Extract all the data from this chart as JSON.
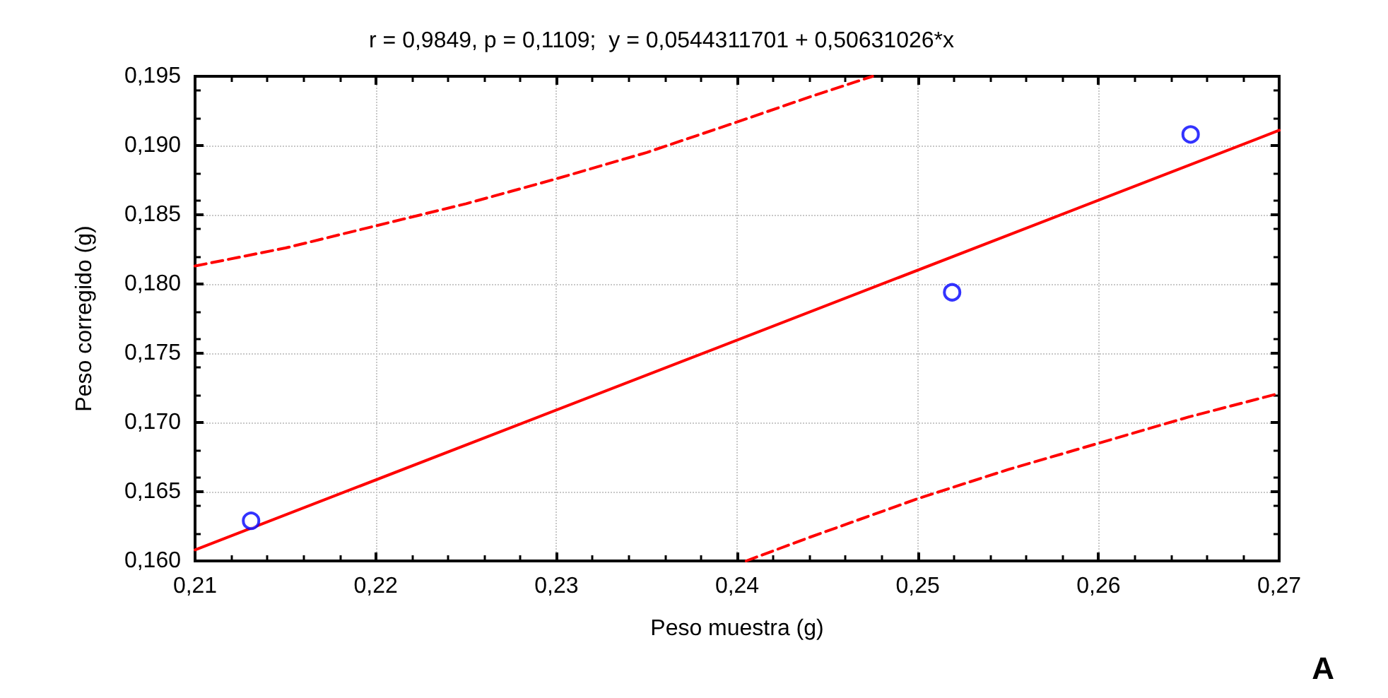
{
  "chart_data": {
    "type": "scatter",
    "title": "r = 0,9849, p = 0,1109;  y = 0,0544311701 + 0,50631026*x",
    "xlabel": "Peso muestra (g)",
    "ylabel": "Peso corregido (g)",
    "xlim": [
      0.21,
      0.27
    ],
    "ylim": [
      0.16,
      0.195
    ],
    "xticks": [
      {
        "value": 0.21,
        "label": "0,21"
      },
      {
        "value": 0.22,
        "label": "0,22"
      },
      {
        "value": 0.23,
        "label": "0,23"
      },
      {
        "value": 0.24,
        "label": "0,24"
      },
      {
        "value": 0.25,
        "label": "0,25"
      },
      {
        "value": 0.26,
        "label": "0,26"
      },
      {
        "value": 0.27,
        "label": "0,27"
      }
    ],
    "yticks": [
      {
        "value": 0.16,
        "label": "0,160"
      },
      {
        "value": 0.165,
        "label": "0,165"
      },
      {
        "value": 0.17,
        "label": "0,170"
      },
      {
        "value": 0.175,
        "label": "0,175"
      },
      {
        "value": 0.18,
        "label": "0,180"
      },
      {
        "value": 0.185,
        "label": "0,185"
      },
      {
        "value": 0.19,
        "label": "0,190"
      },
      {
        "value": 0.195,
        "label": "0,195"
      }
    ],
    "grid": true,
    "annotations": [
      "A"
    ],
    "series": [
      {
        "color": "#0000ff",
        "marker": "circle",
        "x": [
          0.2131,
          0.2519,
          0.2651
        ],
        "values": [
          0.1629,
          0.1794,
          0.1908
        ]
      },
      {
        "type": "line",
        "color": "#ff0000",
        "marker": "none",
        "line_style": "solid",
        "x": [
          0.21,
          0.27
        ],
        "values": [
          0.1608,
          0.1911
        ]
      },
      {
        "type": "line",
        "color": "#ff0000",
        "marker": "none",
        "line_style": "dashed",
        "x": [
          0.21,
          0.215,
          0.22,
          0.225,
          0.23,
          0.235,
          0.24,
          0.244,
          0.2475
        ],
        "values": [
          0.1813,
          0.1826,
          0.1842,
          0.1858,
          0.1876,
          0.1895,
          0.1917,
          0.1935,
          0.195
        ]
      },
      {
        "type": "line",
        "color": "#ff0000",
        "marker": "none",
        "line_style": "dashed",
        "x": [
          0.2405,
          0.244,
          0.25,
          0.255,
          0.26,
          0.265,
          0.27
        ],
        "values": [
          0.16,
          0.1617,
          0.1645,
          0.1666,
          0.1685,
          0.1704,
          0.1721
        ]
      }
    ]
  }
}
